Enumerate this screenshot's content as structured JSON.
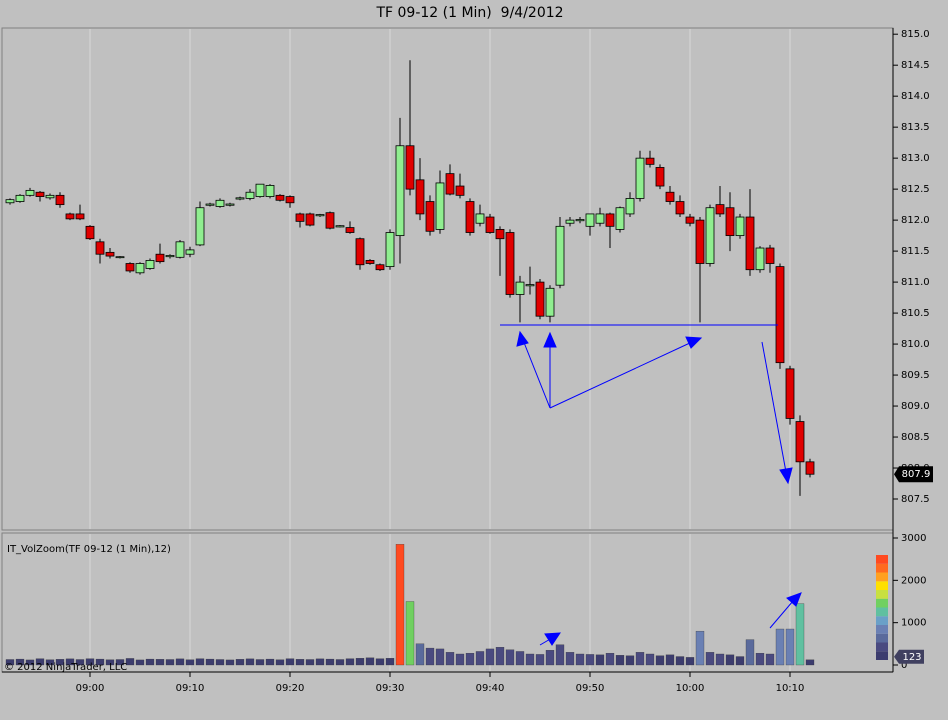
{
  "chart_data": [
    {
      "type": "candlestick",
      "title": "TF 09-12 (1 Min)  9/4/2012",
      "x": [
        "08:52",
        "08:53",
        "08:54",
        "08:55",
        "08:56",
        "08:57",
        "08:58",
        "08:59",
        "09:00",
        "09:01",
        "09:02",
        "09:03",
        "09:04",
        "09:05",
        "09:06",
        "09:07",
        "09:08",
        "09:09",
        "09:10",
        "09:11",
        "09:12",
        "09:13",
        "09:14",
        "09:15",
        "09:16",
        "09:17",
        "09:18",
        "09:19",
        "09:20",
        "09:21",
        "09:22",
        "09:23",
        "09:24",
        "09:25",
        "09:26",
        "09:27",
        "09:28",
        "09:29",
        "09:30",
        "09:31",
        "09:32",
        "09:33",
        "09:34",
        "09:35",
        "09:36",
        "09:37",
        "09:38",
        "09:39",
        "09:40",
        "09:41",
        "09:42",
        "09:43",
        "09:44",
        "09:45",
        "09:46",
        "09:47",
        "09:48",
        "09:49",
        "09:50",
        "09:51",
        "09:52",
        "09:53",
        "09:54",
        "09:55",
        "09:56",
        "09:57",
        "09:58",
        "09:59",
        "10:00",
        "10:01",
        "10:02",
        "10:03",
        "10:04",
        "10:05",
        "10:06",
        "10:07",
        "10:08",
        "10:09",
        "10:10",
        "10:11",
        "10:12"
      ],
      "open": [
        812.28,
        812.3,
        812.4,
        812.45,
        812.36,
        812.4,
        812.1,
        812.1,
        811.9,
        811.65,
        811.48,
        811.4,
        811.3,
        811.15,
        811.22,
        811.45,
        811.41,
        811.4,
        811.45,
        811.6,
        812.24,
        812.22,
        812.24,
        812.34,
        812.35,
        812.38,
        812.38,
        812.4,
        812.38,
        812.1,
        812.1,
        812.07,
        812.12,
        811.89,
        811.88,
        811.7,
        811.35,
        811.28,
        811.25,
        811.75,
        813.2,
        812.65,
        812.3,
        811.85,
        812.75,
        812.55,
        812.3,
        811.95,
        812.05,
        811.85,
        811.8,
        810.8,
        810.94,
        811.0,
        810.45,
        810.95,
        811.95,
        811.99,
        811.9,
        811.95,
        812.1,
        811.85,
        812.1,
        812.35,
        813.0,
        812.85,
        812.45,
        812.3,
        812.05,
        812.0,
        811.3,
        812.25,
        812.2,
        811.75,
        812.05,
        811.2,
        811.55,
        811.25,
        809.6,
        808.75,
        808.1
      ],
      "high": [
        812.35,
        812.42,
        812.52,
        812.47,
        812.43,
        812.45,
        812.12,
        812.25,
        811.92,
        811.7,
        811.55,
        811.42,
        811.32,
        811.32,
        811.38,
        811.62,
        811.45,
        811.68,
        811.57,
        812.3,
        812.28,
        812.35,
        812.28,
        812.38,
        812.5,
        812.58,
        812.58,
        812.42,
        812.4,
        812.12,
        812.12,
        812.1,
        812.14,
        811.92,
        811.98,
        811.72,
        811.37,
        811.3,
        811.85,
        813.65,
        814.58,
        813.0,
        812.4,
        812.8,
        812.9,
        812.75,
        812.35,
        812.25,
        812.1,
        811.9,
        811.85,
        811.1,
        811.25,
        811.05,
        810.95,
        812.05,
        812.05,
        812.05,
        812.1,
        812.2,
        812.12,
        812.22,
        812.45,
        813.12,
        813.12,
        812.9,
        812.55,
        812.4,
        812.1,
        812.05,
        812.25,
        812.55,
        812.45,
        812.1,
        812.5,
        811.58,
        811.6,
        811.3,
        809.65,
        808.85,
        808.15
      ],
      "low": [
        812.25,
        812.28,
        812.38,
        812.3,
        812.33,
        812.2,
        812.0,
        812.0,
        811.68,
        811.3,
        811.38,
        811.38,
        811.15,
        811.12,
        811.2,
        811.3,
        811.38,
        811.38,
        811.4,
        811.58,
        812.22,
        812.2,
        812.22,
        812.32,
        812.32,
        812.36,
        812.35,
        812.3,
        812.2,
        811.88,
        811.9,
        812.05,
        811.85,
        811.88,
        811.78,
        811.2,
        811.28,
        811.18,
        811.2,
        811.3,
        812.4,
        812.0,
        811.75,
        811.78,
        812.4,
        812.35,
        811.75,
        811.9,
        811.78,
        811.1,
        810.75,
        810.35,
        810.8,
        810.4,
        810.35,
        810.9,
        811.9,
        811.95,
        811.75,
        811.9,
        811.55,
        811.8,
        812.05,
        812.3,
        812.85,
        812.5,
        812.25,
        812.05,
        811.9,
        810.35,
        811.25,
        812.05,
        811.5,
        811.7,
        811.1,
        811.15,
        811.15,
        809.6,
        808.7,
        807.55,
        807.85
      ],
      "close": [
        812.33,
        812.4,
        812.48,
        812.38,
        812.4,
        812.25,
        812.02,
        812.02,
        811.7,
        811.45,
        811.42,
        811.41,
        811.18,
        811.3,
        811.35,
        811.33,
        811.43,
        811.65,
        811.52,
        812.2,
        812.26,
        812.32,
        812.26,
        812.36,
        812.45,
        812.58,
        812.56,
        812.32,
        812.28,
        811.98,
        811.92,
        812.09,
        811.87,
        811.91,
        811.8,
        811.28,
        811.3,
        811.2,
        811.8,
        813.2,
        812.5,
        812.1,
        811.82,
        812.6,
        812.42,
        812.4,
        811.8,
        812.1,
        811.8,
        811.7,
        810.8,
        811.0,
        810.96,
        810.45,
        810.9,
        811.9,
        812.0,
        812.01,
        812.1,
        812.1,
        811.9,
        812.2,
        812.35,
        813.0,
        812.9,
        812.55,
        812.3,
        812.1,
        811.95,
        811.3,
        812.2,
        812.1,
        811.75,
        812.05,
        811.2,
        811.55,
        811.3,
        809.7,
        808.8,
        808.1,
        807.9
      ],
      "up_color": "#90ee90",
      "down_color": "#e00000",
      "ylim": [
        807.0,
        815.1
      ],
      "yticks": [
        {
          "value": 807.5,
          "label": "807.5"
        },
        {
          "value": 808,
          "label": "808.0"
        },
        {
          "value": 808.5,
          "label": "808.5"
        },
        {
          "value": 809,
          "label": "809.0"
        },
        {
          "value": 809.5,
          "label": "809.5"
        },
        {
          "value": 810,
          "label": "810.0"
        },
        {
          "value": 810.5,
          "label": "810.5"
        },
        {
          "value": 811,
          "label": "811.0"
        },
        {
          "value": 811.5,
          "label": "811.5"
        },
        {
          "value": 812,
          "label": "812.0"
        },
        {
          "value": 812.5,
          "label": "812.5"
        },
        {
          "value": 813,
          "label": "813.0"
        },
        {
          "value": 813.5,
          "label": "813.5"
        },
        {
          "value": 814,
          "label": "814.0"
        },
        {
          "value": 814.5,
          "label": "814.5"
        },
        {
          "value": 815,
          "label": "815.0"
        }
      ],
      "xticks": [
        "09:00",
        "09:10",
        "09:20",
        "09:30",
        "09:40",
        "09:50",
        "10:00",
        "10:10"
      ],
      "grid": true
    },
    {
      "type": "bar",
      "title": "IT_VolZoom(TF 09-12 (1 Min),12)",
      "watermark": "© 2012 NinjaTrader, LLC",
      "values": [
        130,
        140,
        120,
        150,
        125,
        135,
        145,
        130,
        150,
        140,
        125,
        130,
        155,
        120,
        140,
        135,
        130,
        145,
        125,
        150,
        140,
        130,
        120,
        135,
        145,
        130,
        140,
        125,
        150,
        135,
        130,
        145,
        140,
        130,
        150,
        160,
        170,
        150,
        160,
        2850,
        1500,
        500,
        400,
        380,
        300,
        260,
        280,
        320,
        380,
        420,
        360,
        320,
        260,
        250,
        350,
        480,
        300,
        260,
        250,
        240,
        280,
        230,
        220,
        300,
        260,
        220,
        240,
        200,
        180,
        800,
        300,
        260,
        240,
        200,
        600,
        280,
        260,
        850,
        850,
        1450,
        123
      ],
      "color_scale": [
        "#3c3c6e",
        "#4a4a80",
        "#5a6a9c",
        "#6a80b4",
        "#6aa0c8",
        "#60c0a0",
        "#70d060",
        "#c8e040",
        "#ffe000",
        "#ffa020",
        "#ff6a20",
        "#ff4a20"
      ],
      "ylim": [
        0,
        3000
      ],
      "yticks": [
        0,
        1000,
        2000,
        3000
      ]
    }
  ]
}
